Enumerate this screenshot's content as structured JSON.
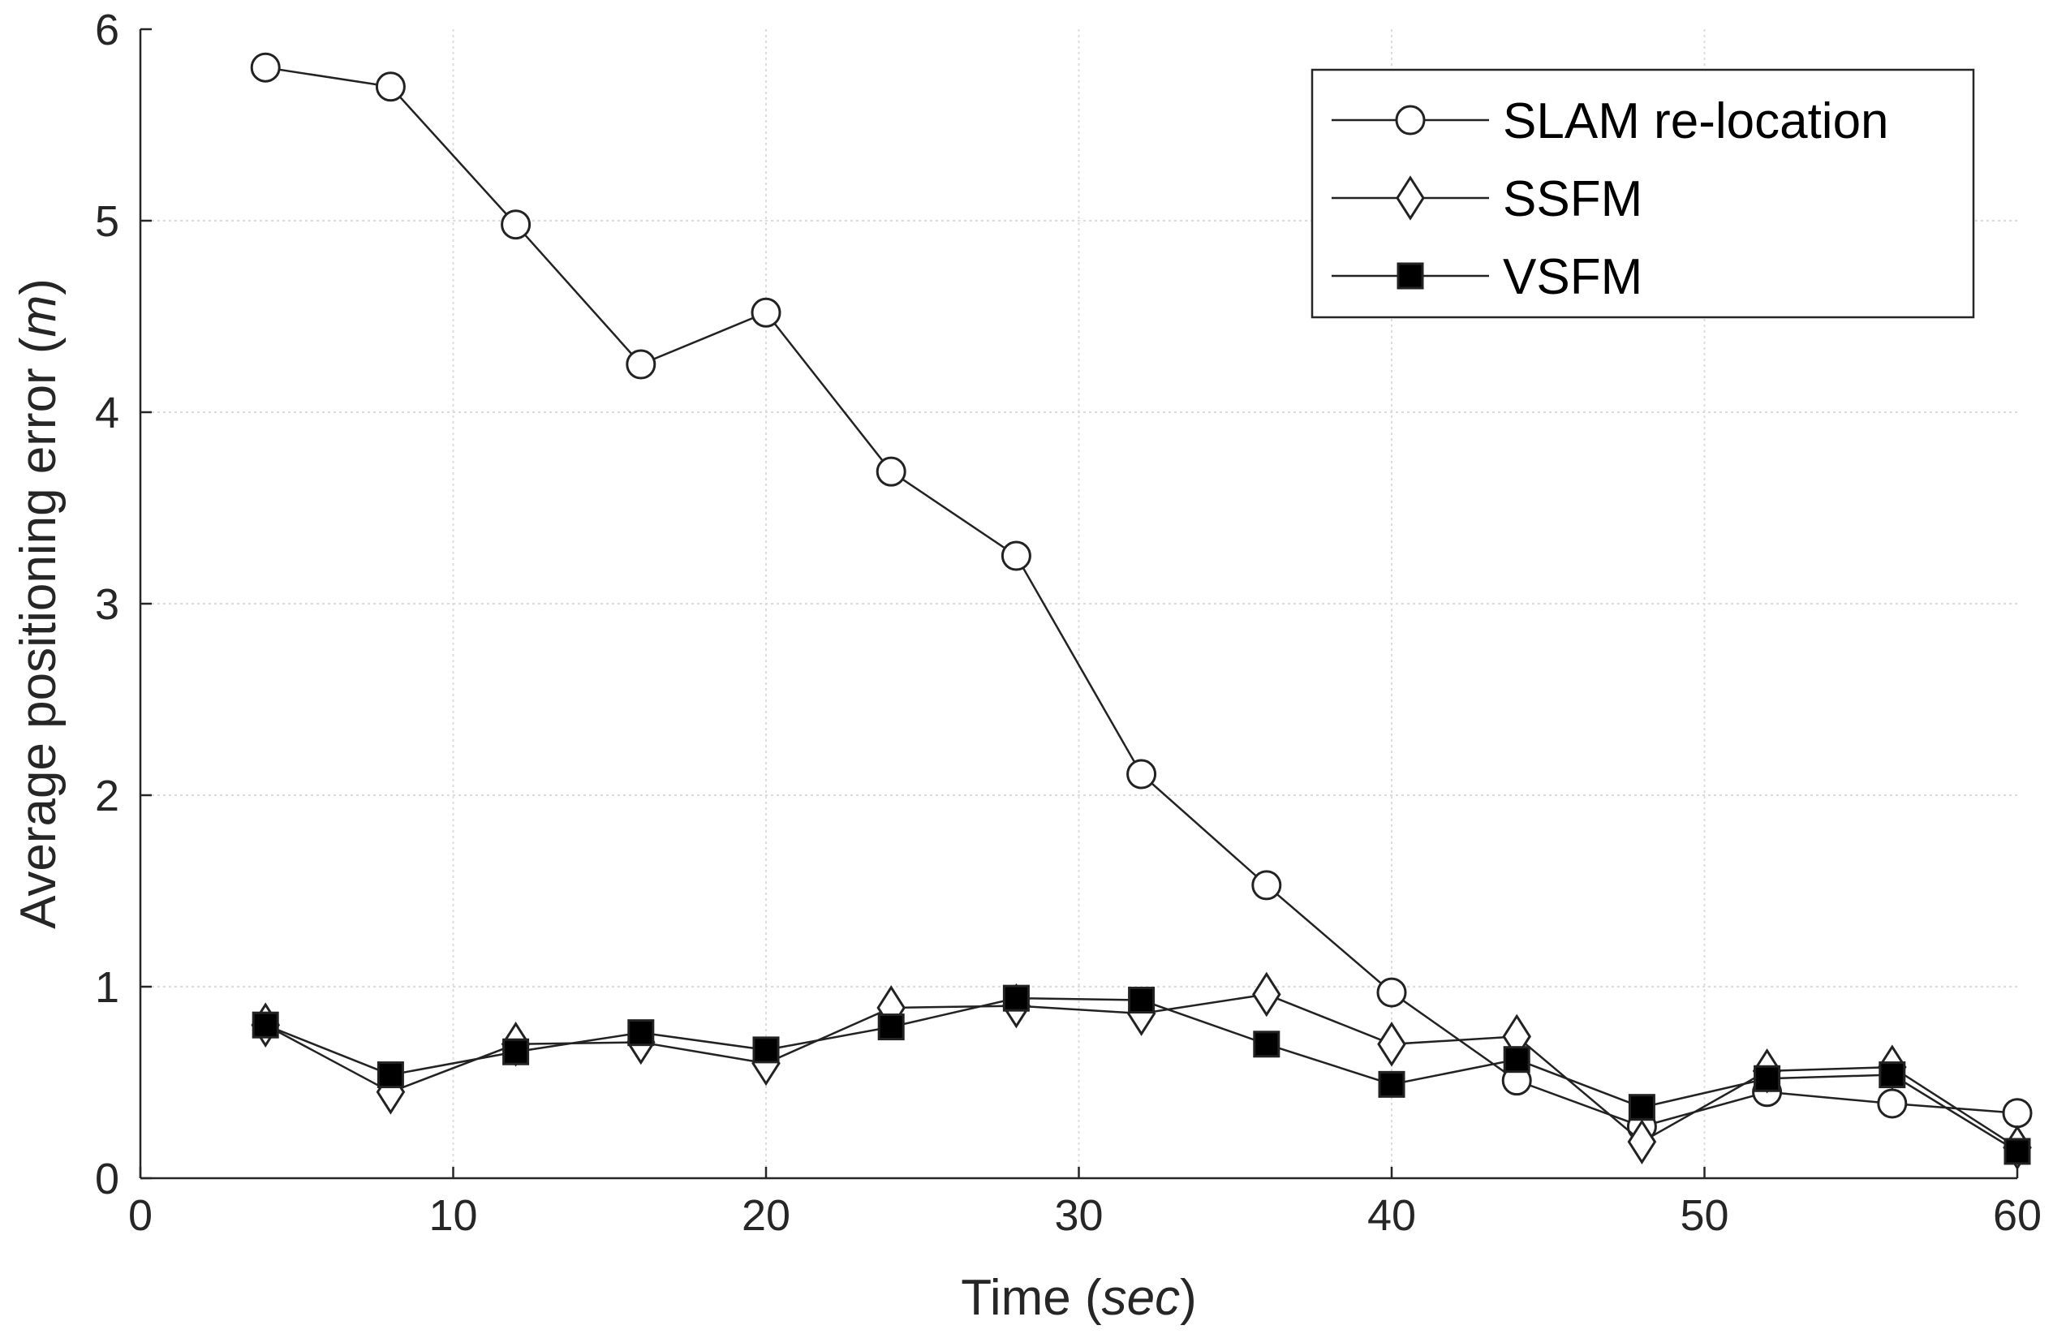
{
  "chart_data": {
    "type": "line",
    "title": "",
    "xlabel": {
      "main": "Time (",
      "italic": "sec",
      "end": ")"
    },
    "ylabel": {
      "main": "Average positioning error (",
      "italic": "m",
      "end": ")"
    },
    "xlim": [
      0,
      60
    ],
    "ylim": [
      0,
      6
    ],
    "xticks": [
      0,
      10,
      20,
      30,
      40,
      50,
      60
    ],
    "yticks": [
      0,
      1,
      2,
      3,
      4,
      5,
      6
    ],
    "grid": true,
    "legend_position": "top-right",
    "x": [
      4,
      8,
      12,
      16,
      20,
      24,
      28,
      32,
      36,
      40,
      44,
      48,
      52,
      56,
      60
    ],
    "series": [
      {
        "name": "SLAM re-location",
        "marker": "circle",
        "values": [
          5.8,
          5.7,
          4.98,
          4.25,
          4.52,
          3.69,
          3.25,
          2.11,
          1.53,
          0.97,
          0.51,
          0.27,
          0.45,
          0.39,
          0.34
        ]
      },
      {
        "name": "SSFM",
        "marker": "diamond",
        "values": [
          0.8,
          0.45,
          0.7,
          0.71,
          0.6,
          0.89,
          0.9,
          0.86,
          0.96,
          0.7,
          0.74,
          0.19,
          0.56,
          0.58,
          0.16
        ]
      },
      {
        "name": "VSFM",
        "marker": "square",
        "values": [
          0.8,
          0.54,
          0.66,
          0.76,
          0.67,
          0.79,
          0.94,
          0.93,
          0.7,
          0.49,
          0.62,
          0.37,
          0.52,
          0.54,
          0.14
        ]
      }
    ]
  }
}
